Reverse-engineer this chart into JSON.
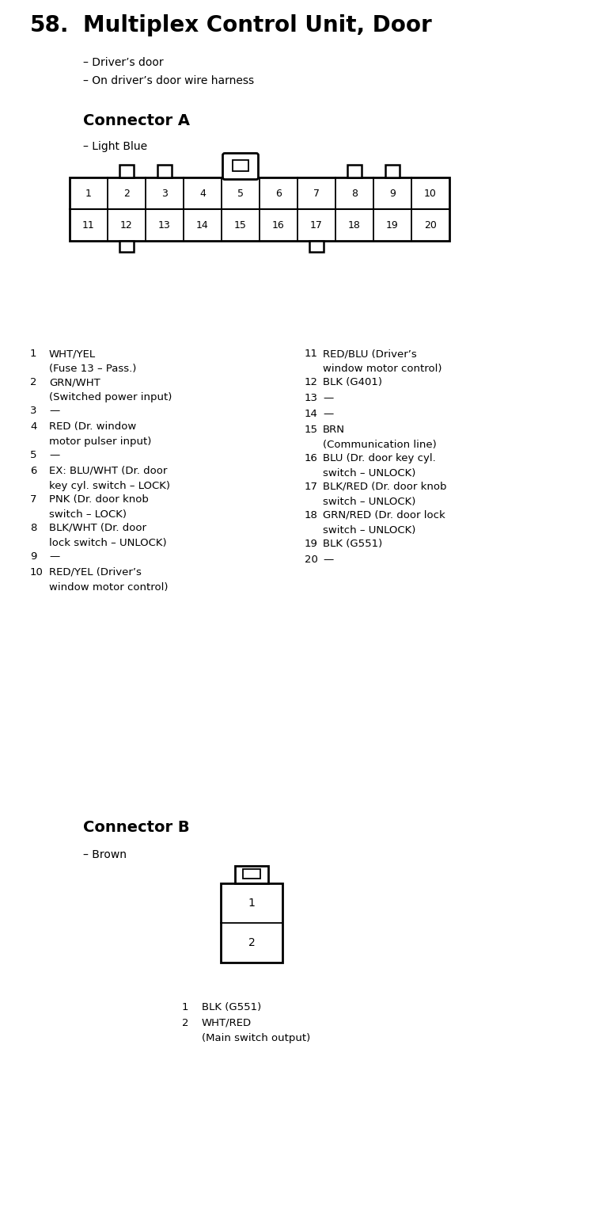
{
  "title_num": "58.",
  "title_text": "Multiplex Control Unit, Door",
  "subtitle_lines": [
    "– Driver’s door",
    "– On driver’s door wire harness"
  ],
  "connector_a_title": "Connector A",
  "connector_a_color": "– Light Blue",
  "connector_b_title": "Connector B",
  "connector_b_color": "– Brown",
  "conn_a_row1": [
    "1",
    "2",
    "3",
    "4",
    "5",
    "6",
    "7",
    "8",
    "9",
    "10"
  ],
  "conn_a_row2": [
    "11",
    "12",
    "13",
    "14",
    "15",
    "16",
    "17",
    "18",
    "19",
    "20"
  ],
  "pin_descriptions_left": [
    [
      "1",
      "WHT/YEL",
      "(Fuse 13 – Pass.)"
    ],
    [
      "2",
      "GRN/WHT",
      "(Switched power input)"
    ],
    [
      "3",
      "—",
      null
    ],
    [
      "4",
      "RED (Dr. window",
      "motor pulser input)"
    ],
    [
      "5",
      "—",
      null
    ],
    [
      "6",
      "EX: BLU/WHT (Dr. door",
      "key cyl. switch – LOCK)"
    ],
    [
      "7",
      "PNK (Dr. door knob",
      "switch – LOCK)"
    ],
    [
      "8",
      "BLK/WHT (Dr. door",
      "lock switch – UNLOCK)"
    ],
    [
      "9",
      "—",
      null
    ],
    [
      "10",
      "RED/YEL (Driver’s",
      "window motor control)"
    ]
  ],
  "pin_descriptions_right": [
    [
      "11",
      "RED/BLU (Driver’s",
      "window motor control)"
    ],
    [
      "12",
      "BLK (G401)",
      null
    ],
    [
      "13",
      "—",
      null
    ],
    [
      "14",
      "—",
      null
    ],
    [
      "15",
      "BRN",
      "(Communication line)"
    ],
    [
      "16",
      "BLU (Dr. door key cyl.",
      "switch – UNLOCK)"
    ],
    [
      "17",
      "BLK/RED (Dr. door knob",
      "switch – UNLOCK)"
    ],
    [
      "18",
      "GRN/RED (Dr. door lock",
      "switch – UNLOCK)"
    ],
    [
      "19",
      "BLK (G551)",
      null
    ],
    [
      "20",
      "—",
      null
    ]
  ],
  "conn_b_descriptions": [
    [
      "1",
      "BLK (G551)",
      null
    ],
    [
      "2",
      "WHT/RED",
      "(Main switch output)"
    ]
  ],
  "bg_color": "#ffffff",
  "text_color": "#000000"
}
